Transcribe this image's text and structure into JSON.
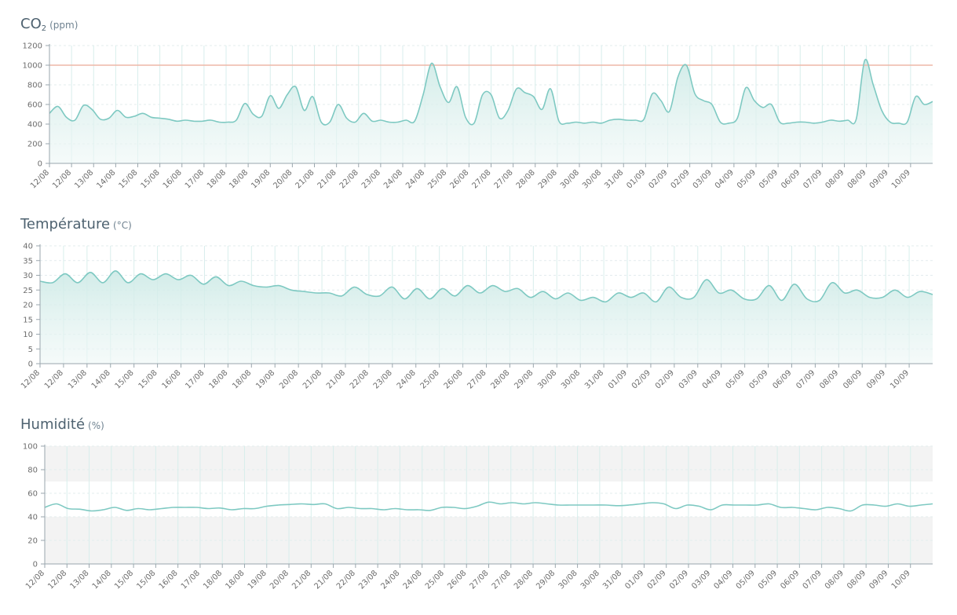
{
  "colors": {
    "line": "#7ec9c2",
    "fill_top": "#cdeae6",
    "fill_bottom": "#eef7f6",
    "grid": "#e3ecee",
    "vgrid": "#d8eeec",
    "threshold": "#eeb7a7",
    "band": "#f3f3f3",
    "axis": "#9aa6ad",
    "tick_text": "#6d6d6d",
    "title": "#4e6270"
  },
  "chart_data": [
    {
      "type": "area",
      "title": "CO",
      "title_sub": "2",
      "unit": "(ppm)",
      "ylim": [
        0,
        1200
      ],
      "yticks": [
        0,
        200,
        400,
        600,
        800,
        1000,
        1200
      ],
      "threshold": 1000,
      "grid": true,
      "x_labels": [
        "12/08",
        "12/08",
        "13/08",
        "14/08",
        "15/08",
        "15/08",
        "16/08",
        "17/08",
        "18/08",
        "18/08",
        "19/08",
        "20/08",
        "21/08",
        "21/08",
        "22/08",
        "23/08",
        "24/08",
        "24/08",
        "25/08",
        "26/08",
        "27/08",
        "27/08",
        "28/08",
        "29/08",
        "30/08",
        "30/08",
        "31/08",
        "01/09",
        "02/09",
        "02/09",
        "03/09",
        "04/09",
        "05/09",
        "05/09",
        "06/09",
        "07/09",
        "08/09",
        "08/09",
        "09/09",
        "10/09"
      ],
      "values": [
        510,
        580,
        470,
        440,
        590,
        550,
        450,
        460,
        540,
        470,
        480,
        510,
        470,
        460,
        450,
        430,
        440,
        430,
        430,
        440,
        420,
        420,
        440,
        610,
        500,
        480,
        690,
        560,
        700,
        780,
        540,
        680,
        420,
        420,
        600,
        460,
        420,
        510,
        430,
        440,
        420,
        420,
        440,
        430,
        700,
        1020,
        780,
        620,
        780,
        470,
        410,
        700,
        700,
        460,
        540,
        760,
        720,
        680,
        550,
        760,
        430,
        410,
        420,
        410,
        420,
        410,
        440,
        450,
        440,
        440,
        450,
        710,
        640,
        530,
        880,
        1000,
        710,
        640,
        600,
        420,
        410,
        460,
        770,
        640,
        570,
        600,
        420,
        410,
        420,
        420,
        410,
        420,
        440,
        430,
        440,
        450,
        1050,
        800,
        540,
        420,
        410,
        420,
        680,
        600,
        630
      ]
    },
    {
      "type": "area",
      "title": "Température",
      "title_sub": "",
      "unit": "(°C)",
      "ylim": [
        0,
        40
      ],
      "yticks": [
        0,
        5,
        10,
        15,
        20,
        25,
        30,
        35,
        40
      ],
      "grid": true,
      "x_labels": [
        "12/08",
        "12/08",
        "13/08",
        "14/08",
        "15/08",
        "15/08",
        "16/08",
        "17/08",
        "18/08",
        "18/08",
        "19/08",
        "20/08",
        "21/08",
        "21/08",
        "22/08",
        "23/08",
        "24/08",
        "25/08",
        "26/08",
        "27/08",
        "28/08",
        "29/08",
        "30/08",
        "30/08",
        "31/08",
        "01/09",
        "02/09",
        "02/09",
        "03/09",
        "04/09",
        "05/09",
        "05/09",
        "06/09",
        "07/09",
        "08/09",
        "08/09",
        "09/09",
        "10/09"
      ],
      "values": [
        28,
        27.5,
        30.5,
        27.5,
        31,
        27.5,
        31.5,
        27.5,
        30.5,
        28.5,
        30.5,
        28.5,
        30,
        27,
        29.5,
        26.5,
        28,
        26.5,
        26,
        26.5,
        25,
        24.5,
        24,
        24,
        23,
        26,
        23.5,
        23,
        26,
        22,
        25.5,
        22,
        25.5,
        23,
        26.5,
        24,
        26.5,
        24.5,
        25.5,
        22.5,
        24.5,
        22,
        24,
        21.5,
        22.5,
        21,
        24,
        22.5,
        24,
        21,
        26,
        22.5,
        22.5,
        28.5,
        24,
        25,
        22,
        22,
        26.5,
        21.5,
        27,
        22,
        21.5,
        27.5,
        24,
        25,
        22.5,
        22.5,
        25,
        22.5,
        24.5,
        23.5
      ]
    },
    {
      "type": "line",
      "title": "Humidité",
      "title_sub": "",
      "unit": "(%)",
      "ylim": [
        0,
        100
      ],
      "yticks": [
        0,
        20,
        40,
        60,
        80,
        100
      ],
      "bands": [
        [
          0,
          40
        ],
        [
          70,
          100
        ]
      ],
      "grid": true,
      "x_labels": [
        "12/08",
        "12/08",
        "13/08",
        "14/08",
        "15/08",
        "15/08",
        "16/08",
        "17/08",
        "18/08",
        "18/08",
        "19/08",
        "20/08",
        "21/08",
        "21/08",
        "22/08",
        "23/08",
        "24/08",
        "24/08",
        "25/08",
        "26/08",
        "27/08",
        "27/08",
        "28/08",
        "29/08",
        "30/08",
        "30/08",
        "31/08",
        "01/09",
        "02/09",
        "02/09",
        "03/09",
        "04/09",
        "05/09",
        "05/09",
        "06/09",
        "07/09",
        "08/09",
        "08/09",
        "09/09",
        "10/09"
      ],
      "values": [
        48,
        51,
        47,
        46.5,
        45,
        46,
        48,
        45.5,
        47,
        46,
        47,
        48,
        48,
        48,
        47,
        47.5,
        46,
        47,
        47,
        49,
        50,
        50.5,
        51,
        50.5,
        51,
        47,
        48,
        47,
        47,
        46,
        47,
        46,
        46,
        45.5,
        48,
        48,
        47,
        49,
        52.5,
        51,
        52,
        51,
        52,
        51,
        50,
        50,
        50,
        50,
        50,
        49.5,
        50,
        51,
        52,
        51,
        47,
        50,
        49,
        46,
        50,
        50,
        50,
        50,
        51,
        48,
        48,
        47,
        46,
        48,
        47,
        45,
        50,
        50,
        49,
        51,
        49,
        50,
        51
      ]
    }
  ]
}
